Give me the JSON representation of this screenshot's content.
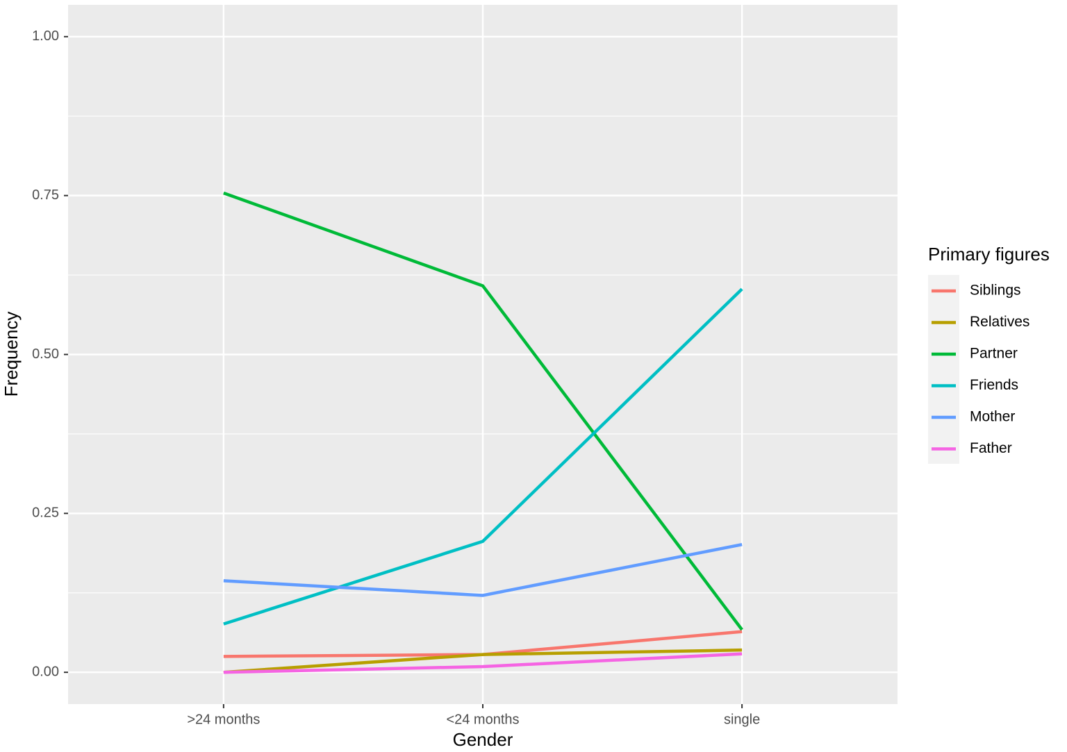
{
  "chart_data": {
    "type": "line",
    "x_label": "Gender",
    "y_label": "Frequency",
    "categories": [
      ">24 months",
      "<24 months",
      "single"
    ],
    "series": [
      {
        "name": "Siblings",
        "color": "#F8766D",
        "values": [
          0.025,
          0.028,
          0.064
        ]
      },
      {
        "name": "Relatives",
        "color": "#B79F00",
        "values": [
          0,
          0.028,
          0.035
        ]
      },
      {
        "name": "Partner",
        "color": "#00BA38",
        "values": [
          0.754,
          0.608,
          0.067
        ]
      },
      {
        "name": "Friends",
        "color": "#00BFC4",
        "values": [
          0.076,
          0.206,
          0.603
        ]
      },
      {
        "name": "Mother",
        "color": "#619CFF",
        "values": [
          0.144,
          0.121,
          0.201
        ]
      },
      {
        "name": "Father",
        "color": "#F564E3",
        "values": [
          0,
          0.009,
          0.029
        ]
      }
    ],
    "legend_title": "Primary figures",
    "legend_position": "right",
    "ylim": [
      -0.05,
      1.05
    ],
    "yticks": [
      {
        "value": 0,
        "label": "0.00"
      },
      0.25,
      {
        "value": 0.5,
        "label": "0.50"
      },
      0.75,
      {
        "value": 1,
        "label": "1.00"
      }
    ],
    "grid": true,
    "minor_grid": true
  }
}
